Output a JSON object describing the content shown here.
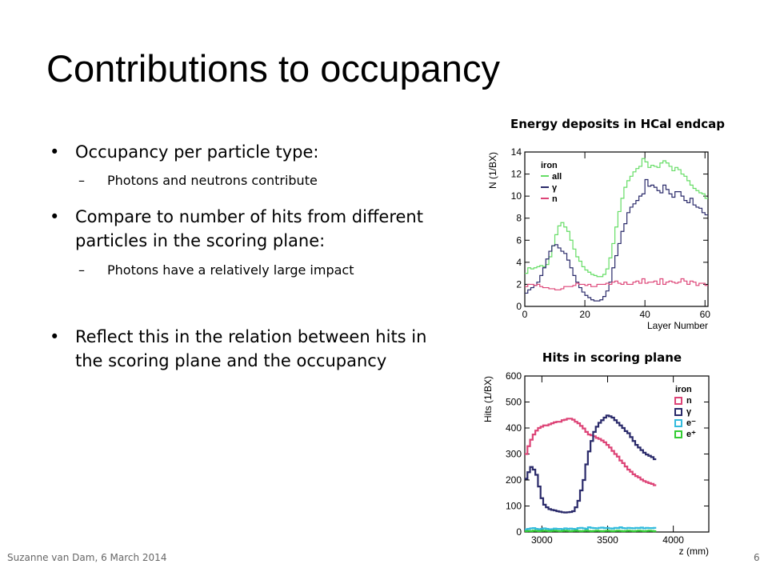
{
  "slide": {
    "title": "Contributions to occupancy",
    "footer": "Suzanne van Dam, 6 March 2014",
    "page_number": "6"
  },
  "bullets": {
    "b1": "Occupancy per particle type:",
    "b1_sub": "Photons and neutrons contribute",
    "b2": "Compare to number of hits from different particles in the scoring plane:",
    "b2_sub": "Photons have a relatively large impact",
    "b3": "Reflect this in the relation between hits in the scoring plane and the occupancy"
  },
  "colors": {
    "all": "#66dd66",
    "gamma": "#2a2a6a",
    "n": "#dd4477",
    "e_minus": "#33bbdd",
    "e_plus": "#33cc33"
  },
  "chart_data": [
    {
      "type": "line",
      "title": "Energy deposits in HCal endcap",
      "xlabel": "Layer Number",
      "ylabel": "N (1/BX)",
      "xlim": [
        0,
        61
      ],
      "ylim": [
        0,
        14
      ],
      "xticks": [
        "0",
        "20",
        "40",
        "60"
      ],
      "yticks": [
        "0",
        "2",
        "4",
        "6",
        "8",
        "10",
        "12",
        "14"
      ],
      "legend_title": "iron",
      "legend_position": "top-left",
      "x_bin_start": 0,
      "x_bin_width": 1,
      "series": [
        {
          "name": "all",
          "color_key": "all",
          "values": [
            3,
            3.5,
            3.4,
            3.5,
            3.6,
            3.7,
            3.6,
            3.8,
            4.5,
            5.5,
            6.5,
            7.3,
            7.6,
            7.2,
            6.8,
            6.0,
            5.2,
            4.5,
            4.1,
            3.6,
            3.3,
            3.1,
            2.9,
            2.8,
            2.7,
            2.7,
            2.9,
            3.4,
            4.4,
            5.7,
            7.2,
            8.6,
            9.8,
            10.8,
            11.4,
            11.8,
            12.2,
            12.5,
            12.7,
            13.4,
            13.1,
            12.6,
            12.8,
            12.7,
            12.6,
            13.0,
            13.2,
            13.0,
            12.7,
            12.3,
            12.6,
            12.4,
            12.0,
            11.8,
            11.4,
            11.0,
            10.7,
            10.5,
            10.3,
            10.2,
            9.8
          ]
        },
        {
          "name": "γ",
          "color_key": "gamma",
          "values": [
            1.2,
            1.5,
            1.7,
            1.9,
            2.2,
            2.8,
            3.5,
            4.3,
            5.0,
            5.5,
            5.6,
            5.3,
            5.0,
            4.8,
            4.2,
            3.5,
            2.8,
            2.2,
            1.7,
            1.3,
            1.0,
            0.8,
            0.6,
            0.5,
            0.5,
            0.6,
            0.9,
            1.4,
            2.2,
            3.5,
            4.6,
            5.7,
            6.8,
            7.5,
            8.5,
            9.0,
            9.3,
            9.6,
            10.0,
            10.2,
            11.5,
            10.9,
            11.0,
            10.8,
            10.5,
            10.3,
            11.0,
            10.6,
            10.2,
            9.9,
            10.4,
            10.4,
            10.0,
            9.6,
            9.4,
            9.8,
            9.2,
            9.0,
            8.9,
            8.5,
            8.3
          ]
        },
        {
          "name": "n",
          "color_key": "n",
          "values": [
            1.8,
            2.0,
            2.0,
            1.9,
            2.0,
            1.8,
            1.7,
            1.7,
            1.6,
            1.6,
            1.5,
            1.5,
            1.6,
            1.8,
            1.8,
            1.8,
            1.9,
            2.1,
            2.0,
            2.0,
            1.9,
            2.0,
            1.8,
            1.8,
            2.0,
            2.0,
            2.0,
            2.1,
            2.0,
            2.2,
            2.3,
            2.1,
            2.0,
            2.2,
            2.0,
            2.0,
            2.2,
            2.3,
            2.1,
            2.5,
            2.1,
            2.2,
            2.2,
            2.3,
            2.0,
            2.5,
            2.0,
            2.2,
            2.3,
            2.2,
            2.1,
            2.2,
            2.5,
            2.3,
            2.0,
            2.3,
            2.2,
            1.9,
            2.1,
            2.1,
            1.9
          ]
        }
      ]
    },
    {
      "type": "line",
      "title": "Hits in scoring plane",
      "xlabel": "z (mm)",
      "ylabel": "Hits (1/BX)",
      "xlim": [
        2870,
        4270
      ],
      "ylim": [
        0,
        600
      ],
      "xticks": [
        "3000",
        "3500",
        "4000"
      ],
      "yticks": [
        "0",
        "100",
        "200",
        "300",
        "400",
        "500",
        "600"
      ],
      "legend_title": "iron",
      "legend_position": "top-right",
      "x_bin_start": 2870,
      "x_bin_width": 20,
      "series": [
        {
          "name": "n",
          "color_key": "n",
          "values": [
            300,
            330,
            355,
            375,
            390,
            400,
            405,
            410,
            410,
            414,
            418,
            422,
            424,
            424,
            430,
            432,
            436,
            436,
            432,
            424,
            418,
            408,
            398,
            385,
            375,
            372,
            368,
            362,
            358,
            352,
            345,
            335,
            325,
            312,
            300,
            290,
            275,
            265,
            252,
            240,
            232,
            222,
            215,
            210,
            202,
            196,
            192,
            188,
            185,
            180
          ]
        },
        {
          "name": "γ",
          "color_key": "gamma",
          "values": [
            205,
            230,
            250,
            240,
            220,
            175,
            130,
            105,
            95,
            88,
            85,
            83,
            80,
            78,
            76,
            75,
            76,
            77,
            80,
            95,
            120,
            160,
            200,
            260,
            310,
            350,
            385,
            405,
            420,
            430,
            440,
            448,
            445,
            440,
            430,
            420,
            410,
            400,
            388,
            380,
            365,
            350,
            335,
            325,
            315,
            305,
            298,
            293,
            288,
            280
          ]
        },
        {
          "name": "e⁻",
          "color_key": "e_minus",
          "values": [
            10,
            12,
            14,
            15,
            12,
            10,
            12,
            14,
            12,
            10,
            11,
            13,
            12,
            12,
            11,
            14,
            12,
            13,
            12,
            11,
            15,
            16,
            14,
            12,
            18,
            16,
            15,
            14,
            16,
            17,
            15,
            16,
            14,
            13,
            16,
            15,
            18,
            15,
            14,
            16,
            15,
            14,
            16,
            15,
            17,
            14,
            16,
            15,
            15,
            16
          ]
        },
        {
          "name": "e⁺",
          "color_key": "e_plus",
          "values": [
            3,
            4,
            3,
            5,
            4,
            3,
            4,
            5,
            4,
            3,
            4,
            5,
            4,
            3,
            4,
            5,
            4,
            3,
            4,
            5,
            4,
            3,
            4,
            5,
            4,
            3,
            4,
            5,
            4,
            3,
            4,
            5,
            4,
            3,
            4,
            5,
            4,
            3,
            4,
            5,
            4,
            3,
            4,
            5,
            4,
            3,
            4,
            5,
            4,
            3
          ]
        }
      ]
    }
  ]
}
